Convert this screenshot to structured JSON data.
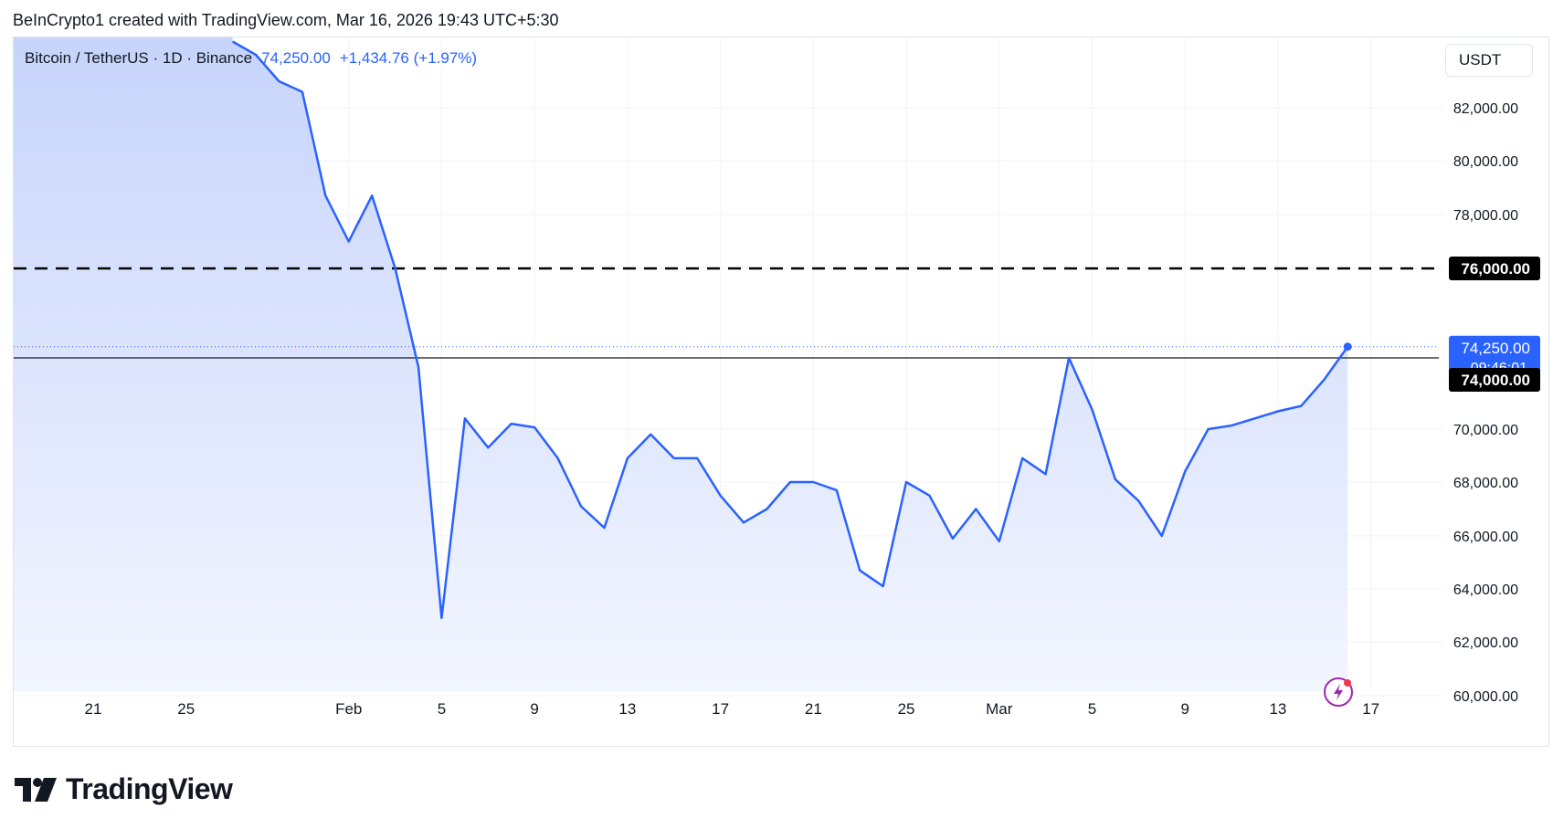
{
  "header": {
    "caption": "BeInCrypto1 created with TradingView.com, Mar 16, 2026 19:43 UTC+5:30"
  },
  "legend": {
    "symbol": "Bitcoin / TetherUS · 1D · Binance",
    "price": "74,250.00",
    "change": "+1,434.76 (+1.97%)"
  },
  "toolbar": {
    "currency": "USDT"
  },
  "brand": {
    "name": "TradingView"
  },
  "colors": {
    "line": "#2962ff",
    "fill_top": "#c7d4fb",
    "fill_bottom": "#f3f6ff",
    "grid": "#f0f3fa",
    "label_dark": "#000000",
    "label_blue": "#2962ff"
  },
  "icons": {
    "logo": "tradingview-logo-icon",
    "flash": "flash-icon"
  },
  "chart_data": {
    "type": "area",
    "title": "Bitcoin / TetherUS · 1D · Binance",
    "xlabel": "",
    "ylabel": "",
    "y_tick_labels": [
      "82,000.00",
      "80,000.00",
      "78,000.00",
      "76,000.00",
      "74,000.00",
      "70,000.00",
      "68,000.00",
      "66,000.00",
      "64,000.00",
      "62,000.00",
      "60,000.00"
    ],
    "x_tick_labels": [
      "21",
      "25",
      "Feb",
      "5",
      "9",
      "13",
      "17",
      "21",
      "25",
      "Mar",
      "5",
      "9",
      "13",
      "17"
    ],
    "x": [
      "Jan 27",
      "Jan 28",
      "Jan 29",
      "Jan 30",
      "Jan 31",
      "Feb 1",
      "Feb 2",
      "Feb 3",
      "Feb 4",
      "Feb 5",
      "Feb 6",
      "Feb 7",
      "Feb 8",
      "Feb 9",
      "Feb 10",
      "Feb 11",
      "Feb 12",
      "Feb 13",
      "Feb 14",
      "Feb 15",
      "Feb 16",
      "Feb 17",
      "Feb 18",
      "Feb 19",
      "Feb 20",
      "Feb 21",
      "Feb 22",
      "Feb 23",
      "Feb 24",
      "Feb 25",
      "Feb 26",
      "Feb 27",
      "Feb 28",
      "Mar 1",
      "Mar 2",
      "Mar 3",
      "Mar 4",
      "Mar 5",
      "Mar 6",
      "Mar 7",
      "Mar 8",
      "Mar 9",
      "Mar 10",
      "Mar 11",
      "Mar 12",
      "Mar 13",
      "Mar 14",
      "Mar 15",
      "Mar 16"
    ],
    "series": [
      {
        "values": [
          84500,
          84000,
          83000,
          82600,
          78700,
          77000,
          78700,
          76000,
          73500,
          62900,
          70600,
          69300,
          70300,
          70100,
          68900,
          67100,
          66300,
          68900,
          69800,
          68900,
          68900,
          67500,
          66500,
          67000,
          68000,
          68000,
          67700,
          64700,
          64100,
          68000,
          67500,
          65900,
          67000,
          65800,
          68900,
          68300,
          74000,
          71100,
          68100,
          67300,
          66000,
          68400,
          70000,
          70200,
          70600,
          71000,
          71300,
          72800,
          74250
        ]
      }
    ],
    "price_labels": [
      {
        "text": "76,000.00",
        "style": "dark"
      },
      {
        "text": "74,250.00",
        "sub": "09:46:01",
        "style": "blue"
      },
      {
        "text": "74,000.00",
        "style": "dark"
      }
    ],
    "annotations": [
      {
        "type": "horizontal-line-dashed",
        "value": 76000
      },
      {
        "type": "horizontal-line-solid",
        "value": 74000
      },
      {
        "type": "horizontal-line-dotted",
        "value": 74250
      }
    ],
    "grid": true,
    "legend_position": "top-left"
  }
}
